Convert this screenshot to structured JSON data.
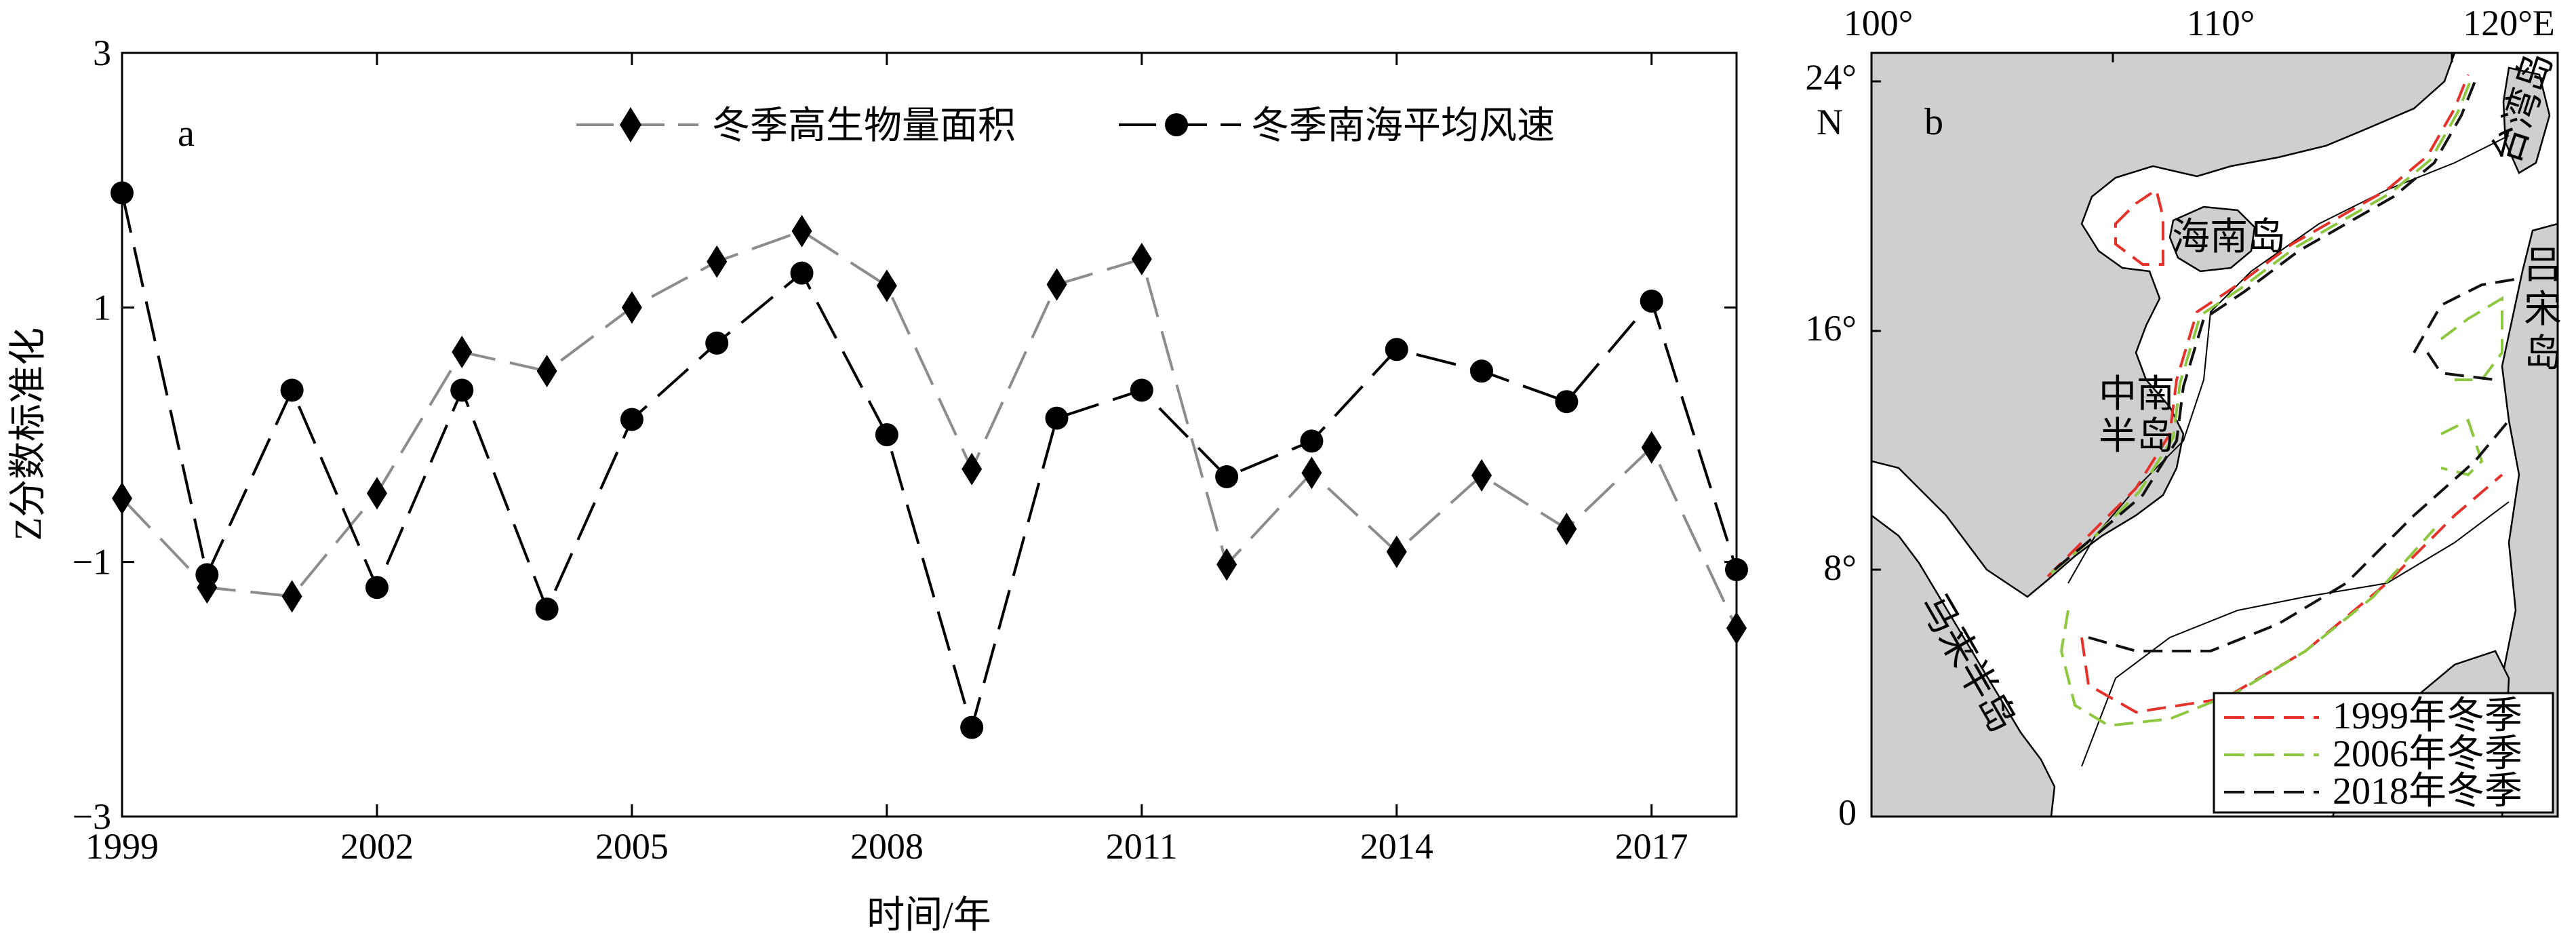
{
  "chart_data": [
    {
      "type": "line",
      "panel_label": "a",
      "title": "",
      "xlabel": "时间/年",
      "ylabel": "Z分数标准化",
      "xlim": [
        1999,
        2018
      ],
      "ylim": [
        -3,
        3
      ],
      "x_ticks": [
        1999,
        2002,
        2005,
        2008,
        2011,
        2014,
        2017
      ],
      "y_ticks": [
        -3,
        -1,
        1,
        3
      ],
      "x_tick_labels": [
        "1999",
        "2002",
        "2005",
        "2008",
        "2011",
        "2014",
        "2017"
      ],
      "y_tick_labels": [
        "−3",
        "−1",
        "1",
        "3"
      ],
      "legend_position": "top-center",
      "x": [
        1999,
        2000,
        2001,
        2002,
        2003,
        2004,
        2005,
        2006,
        2007,
        2008,
        2009,
        2010,
        2011,
        2012,
        2013,
        2014,
        2015,
        2016,
        2017,
        2018
      ],
      "series": [
        {
          "name": "冬季高生物量面积",
          "color": "#8c8c8c",
          "marker": "diamond",
          "values": [
            -0.5,
            -1.2,
            -1.27,
            -0.46,
            0.65,
            0.5,
            1.0,
            1.36,
            1.6,
            1.17,
            -0.27,
            1.18,
            1.38,
            -1.02,
            -0.3,
            -0.92,
            -0.32,
            -0.74,
            -0.1,
            -1.52
          ]
        },
        {
          "name": "冬季南海平均风速",
          "color": "#000000",
          "marker": "circle",
          "values": [
            1.9,
            -1.1,
            0.35,
            -1.2,
            0.35,
            -1.37,
            0.12,
            0.72,
            1.27,
            0.0,
            -2.3,
            0.13,
            0.35,
            -0.33,
            -0.05,
            0.67,
            0.5,
            0.26,
            1.05,
            -1.06
          ]
        }
      ]
    },
    {
      "type": "map",
      "panel_label": "b",
      "lon_ticks": [
        "100°",
        "110°",
        "120°E"
      ],
      "lat_ticks": [
        "24°",
        "16°",
        "8°",
        "0"
      ],
      "lat_unit_label": "N",
      "place_labels": [
        "海南岛",
        "中南\n半岛",
        "马来半岛",
        "吕宋岛",
        "台湾岛"
      ],
      "legend_position": "bottom-right",
      "series": [
        {
          "name": "1999年冬季",
          "color": "#e4322b",
          "style": "dashed"
        },
        {
          "name": "2006年冬季",
          "color": "#8dc63f",
          "style": "dashed"
        },
        {
          "name": "2018年冬季",
          "color": "#111111",
          "style": "dashed"
        }
      ]
    }
  ]
}
